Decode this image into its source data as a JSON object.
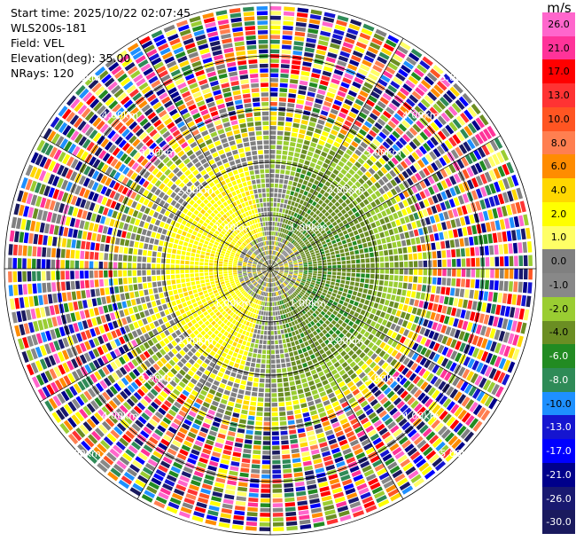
{
  "header": {
    "start_time": "Start time: 2025/10/22 02:07:45",
    "instrument": "WLS200s-181",
    "field": "Field: VEL",
    "elevation": "Elevation(deg): 35.00",
    "nrays": "NRays: 120"
  },
  "colorbar": {
    "unit": "m/s",
    "ticks": [
      "26.0",
      "21.0",
      "17.0",
      "13.0",
      "10.0",
      "8.0",
      "6.0",
      "4.0",
      "2.0",
      "1.0",
      "0.0",
      "-1.0",
      "-2.0",
      "-4.0",
      "-6.0",
      "-8.0",
      "-10.0",
      "-13.0",
      "-17.0",
      "-21.0",
      "-26.0",
      "-30.0"
    ],
    "colors": [
      "#ff66cc",
      "#ff3399",
      "#ff0000",
      "#ff3333",
      "#ff5522",
      "#ff7f50",
      "#ff8c00",
      "#ffd700",
      "#ffff00",
      "#ffff66",
      "#808080",
      "#888888",
      "#9acd32",
      "#6b8e23",
      "#228b22",
      "#2e8b57",
      "#1e90ff",
      "#1515d0",
      "#0000ff",
      "#00008b",
      "#191970",
      "#1a1a5e"
    ]
  },
  "chart_data": {
    "type": "ppi",
    "field": "VEL",
    "units": "m/s",
    "nrays": 120,
    "elevation_deg": 35.0,
    "range_rings_km": [
      1.0,
      2.0,
      3.0,
      4.0,
      5.0
    ],
    "range_labels": [
      "1.00km",
      "2.00km",
      "3.00km",
      "4.00km",
      "5.00km"
    ],
    "max_range_km": 5.0,
    "vmin": -30.0,
    "vmax": 26.0
  }
}
